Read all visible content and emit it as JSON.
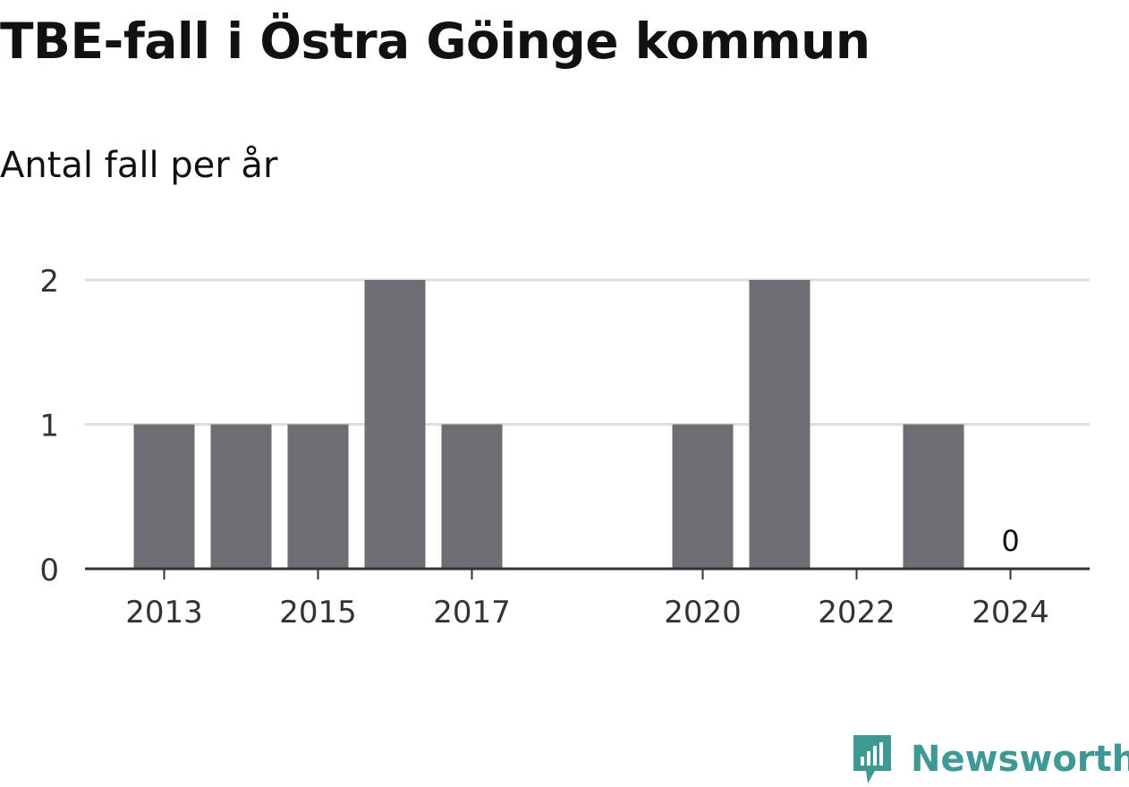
{
  "chart_data": {
    "type": "bar",
    "title": "TBE-fall i Östra Göinge kommun",
    "subtitle": "Antal fall per år",
    "x": [
      2013,
      2014,
      2015,
      2016,
      2017,
      2018,
      2019,
      2020,
      2021,
      2022,
      2023,
      2024
    ],
    "values": [
      1,
      1,
      1,
      2,
      1,
      null,
      null,
      1,
      2,
      null,
      1,
      0
    ],
    "xtick_labels": [
      "2013",
      "2015",
      "2017",
      "2020",
      "2022",
      "2024"
    ],
    "ytick_labels": [
      "0",
      "1",
      "2"
    ],
    "ylim": [
      0,
      2
    ],
    "grid": true,
    "data_labels": [
      {
        "x": 2024,
        "text": "0"
      }
    ],
    "bar_color": "#6e6d73"
  },
  "brand": {
    "name": "Newsworthy",
    "icon": "newsworthy-logo-icon",
    "color": "#3e9994"
  }
}
